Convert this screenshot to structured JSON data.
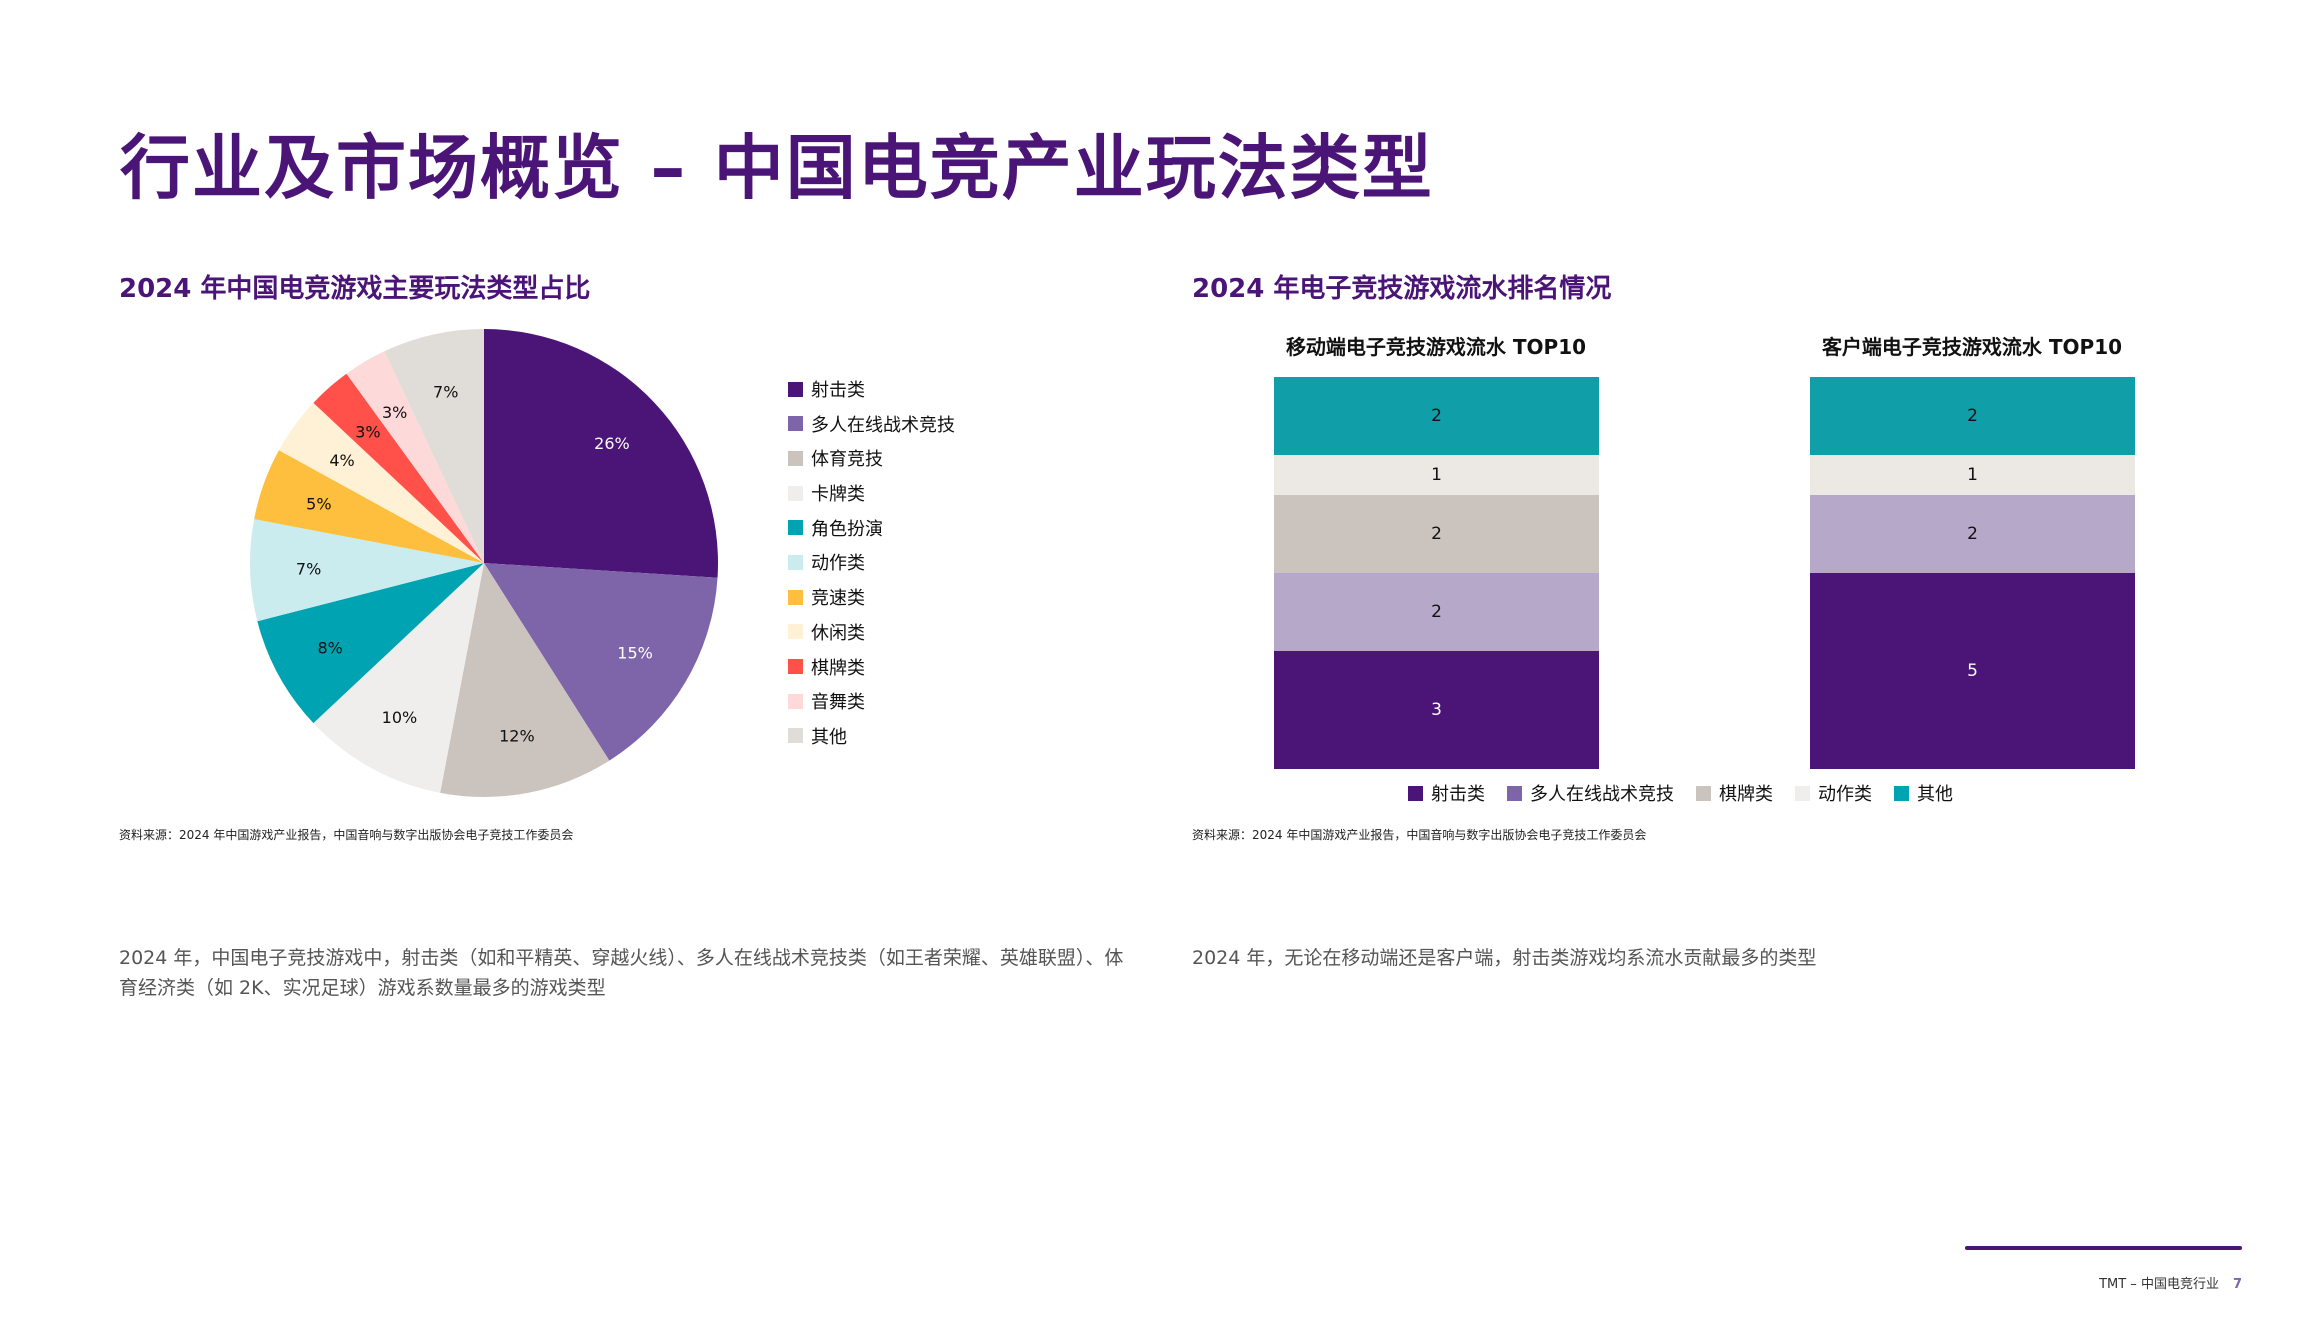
{
  "title": "行业及市场概览 – 中国电竞产业玩法类型",
  "left": {
    "heading": "2024 年中国电竞游戏主要玩法类型占比",
    "source": "资料来源：2024 年中国游戏产业报告，中国音响与数字出版协会电子竞技工作委员会",
    "paragraph": "2024 年，中国电子竞技游戏中，射击类（如和平精英、穿越火线）、多人在线战术竞技类（如王者荣耀、英雄联盟）、体育经济类（如 2K、实况足球）游戏系数量最多的游戏类型"
  },
  "right": {
    "heading": "2024 年电子竞技游戏流水排名情况",
    "source": "资料来源：2024 年中国游戏产业报告，中国音响与数字出版协会电子竞技工作委员会",
    "paragraph": "2024 年，无论在移动端还是客户端，射击类游戏均系流水贡献最多的类型"
  },
  "chart_data": [
    {
      "type": "pie",
      "title": "2024 年中国电竞游戏主要玩法类型占比",
      "legend_position": "right",
      "slices": [
        {
          "label": "射击类",
          "value": 26,
          "display": "26%",
          "color": "#4a1577",
          "text": "#ffffff"
        },
        {
          "label": "多人在线战术竞技",
          "value": 15,
          "display": "15%",
          "color": "#7e64a8",
          "text": "#ffffff"
        },
        {
          "label": "体育竞技",
          "value": 12,
          "display": "12%",
          "color": "#cbc3bd",
          "text": "#111111"
        },
        {
          "label": "卡牌类",
          "value": 10,
          "display": "10%",
          "color": "#efeeec",
          "text": "#111111"
        },
        {
          "label": "角色扮演",
          "value": 8,
          "display": "8%",
          "color": "#00a3b1",
          "text": "#111111"
        },
        {
          "label": "动作类",
          "value": 7,
          "display": "7%",
          "color": "#cbecee",
          "text": "#111111"
        },
        {
          "label": "竞速类",
          "value": 5,
          "display": "5%",
          "color": "#fdbf3d",
          "text": "#111111"
        },
        {
          "label": "休闲类",
          "value": 4,
          "display": "4%",
          "color": "#fef1d6",
          "text": "#111111"
        },
        {
          "label": "棋牌类",
          "value": 3,
          "display": "3%",
          "color": "#ff514a",
          "text": "#111111"
        },
        {
          "label": "音舞类",
          "value": 3,
          "display": "3%",
          "color": "#fdd9da",
          "text": "#111111"
        },
        {
          "label": "其他",
          "value": 7,
          "display": "7%",
          "color": "#e0ddd8",
          "text": "#111111"
        }
      ]
    },
    {
      "type": "bar",
      "stacked": true,
      "legend_position": "bottom",
      "categories": [
        "移动端电子竞技游戏流水 TOP10",
        "客户端电子竞技游戏流水 TOP10"
      ],
      "series": [
        {
          "name": "射击类",
          "values": [
            3,
            5
          ],
          "color": "#4a1577",
          "legend_color": "#4a1577",
          "text": "#ffffff"
        },
        {
          "name": "多人在线战术竞技",
          "values": [
            2,
            2
          ],
          "color": "#b6a8c9",
          "legend_color": "#7e64a8",
          "text": "#111111"
        },
        {
          "name": "棋牌类",
          "values": [
            2,
            0
          ],
          "color": "#cbc3bd",
          "legend_color": "#cbc3bd",
          "text": "#111111"
        },
        {
          "name": "动作类",
          "values": [
            1,
            1
          ],
          "color": "#ece8e4",
          "legend_color": "#efeeec",
          "text": "#111111"
        },
        {
          "name": "其他",
          "values": [
            2,
            2
          ],
          "color": "#109ea9",
          "legend_color": "#00a3b1",
          "text": "#111111"
        }
      ]
    }
  ],
  "footer": {
    "text": "TMT –  中国电竞行业",
    "page": "7"
  }
}
